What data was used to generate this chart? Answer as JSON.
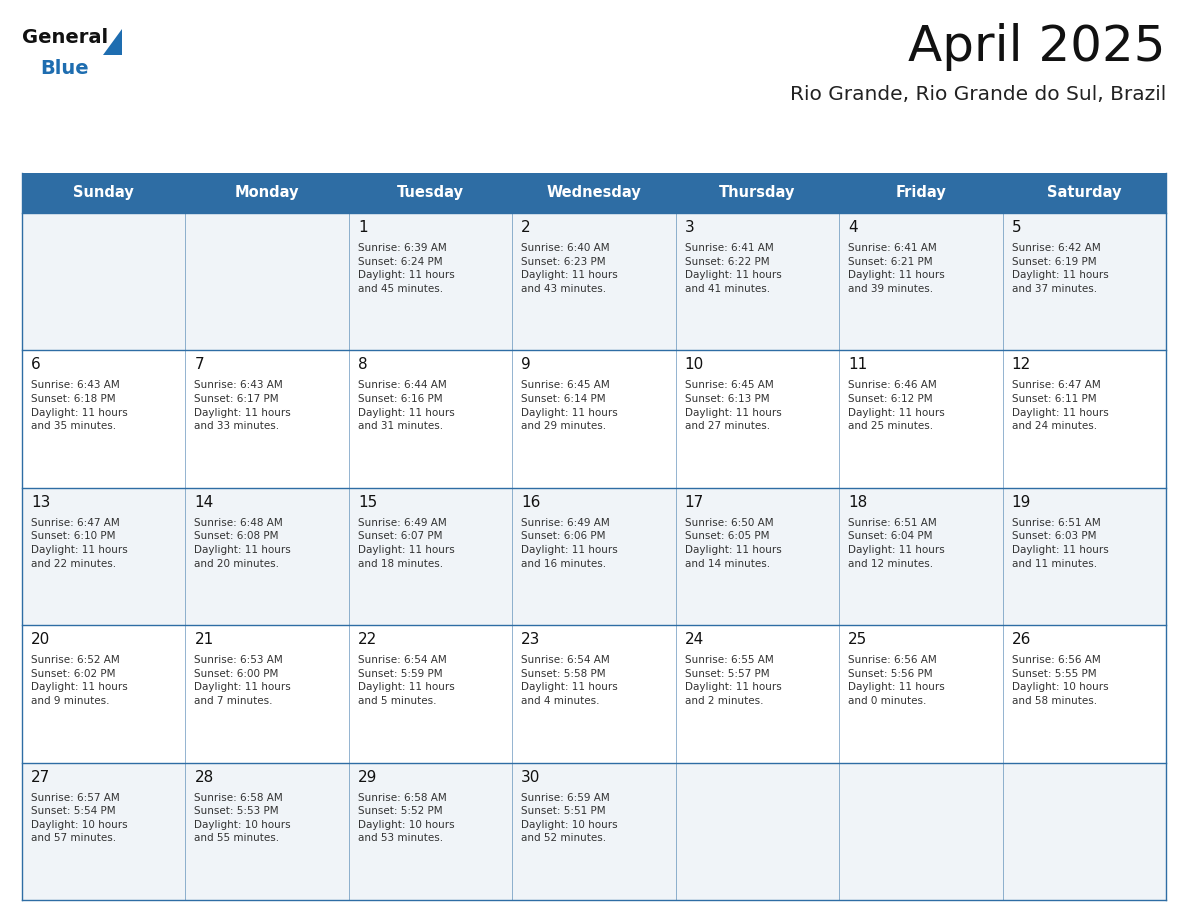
{
  "title": "April 2025",
  "subtitle": "Rio Grande, Rio Grande do Sul, Brazil",
  "days_of_week": [
    "Sunday",
    "Monday",
    "Tuesday",
    "Wednesday",
    "Thursday",
    "Friday",
    "Saturday"
  ],
  "header_bg": "#2E6DA4",
  "header_text": "#FFFFFF",
  "cell_bg_odd": "#F0F4F8",
  "cell_bg_even": "#FFFFFF",
  "cell_border": "#2E6DA4",
  "day_number_color": "#111111",
  "info_text_color": "#333333",
  "title_color": "#111111",
  "subtitle_color": "#222222",
  "logo_general_color": "#111111",
  "logo_blue_color": "#1E6DB0",
  "calendar_data": [
    [
      {
        "day": null,
        "info": ""
      },
      {
        "day": null,
        "info": ""
      },
      {
        "day": 1,
        "info": "Sunrise: 6:39 AM\nSunset: 6:24 PM\nDaylight: 11 hours\nand 45 minutes."
      },
      {
        "day": 2,
        "info": "Sunrise: 6:40 AM\nSunset: 6:23 PM\nDaylight: 11 hours\nand 43 minutes."
      },
      {
        "day": 3,
        "info": "Sunrise: 6:41 AM\nSunset: 6:22 PM\nDaylight: 11 hours\nand 41 minutes."
      },
      {
        "day": 4,
        "info": "Sunrise: 6:41 AM\nSunset: 6:21 PM\nDaylight: 11 hours\nand 39 minutes."
      },
      {
        "day": 5,
        "info": "Sunrise: 6:42 AM\nSunset: 6:19 PM\nDaylight: 11 hours\nand 37 minutes."
      }
    ],
    [
      {
        "day": 6,
        "info": "Sunrise: 6:43 AM\nSunset: 6:18 PM\nDaylight: 11 hours\nand 35 minutes."
      },
      {
        "day": 7,
        "info": "Sunrise: 6:43 AM\nSunset: 6:17 PM\nDaylight: 11 hours\nand 33 minutes."
      },
      {
        "day": 8,
        "info": "Sunrise: 6:44 AM\nSunset: 6:16 PM\nDaylight: 11 hours\nand 31 minutes."
      },
      {
        "day": 9,
        "info": "Sunrise: 6:45 AM\nSunset: 6:14 PM\nDaylight: 11 hours\nand 29 minutes."
      },
      {
        "day": 10,
        "info": "Sunrise: 6:45 AM\nSunset: 6:13 PM\nDaylight: 11 hours\nand 27 minutes."
      },
      {
        "day": 11,
        "info": "Sunrise: 6:46 AM\nSunset: 6:12 PM\nDaylight: 11 hours\nand 25 minutes."
      },
      {
        "day": 12,
        "info": "Sunrise: 6:47 AM\nSunset: 6:11 PM\nDaylight: 11 hours\nand 24 minutes."
      }
    ],
    [
      {
        "day": 13,
        "info": "Sunrise: 6:47 AM\nSunset: 6:10 PM\nDaylight: 11 hours\nand 22 minutes."
      },
      {
        "day": 14,
        "info": "Sunrise: 6:48 AM\nSunset: 6:08 PM\nDaylight: 11 hours\nand 20 minutes."
      },
      {
        "day": 15,
        "info": "Sunrise: 6:49 AM\nSunset: 6:07 PM\nDaylight: 11 hours\nand 18 minutes."
      },
      {
        "day": 16,
        "info": "Sunrise: 6:49 AM\nSunset: 6:06 PM\nDaylight: 11 hours\nand 16 minutes."
      },
      {
        "day": 17,
        "info": "Sunrise: 6:50 AM\nSunset: 6:05 PM\nDaylight: 11 hours\nand 14 minutes."
      },
      {
        "day": 18,
        "info": "Sunrise: 6:51 AM\nSunset: 6:04 PM\nDaylight: 11 hours\nand 12 minutes."
      },
      {
        "day": 19,
        "info": "Sunrise: 6:51 AM\nSunset: 6:03 PM\nDaylight: 11 hours\nand 11 minutes."
      }
    ],
    [
      {
        "day": 20,
        "info": "Sunrise: 6:52 AM\nSunset: 6:02 PM\nDaylight: 11 hours\nand 9 minutes."
      },
      {
        "day": 21,
        "info": "Sunrise: 6:53 AM\nSunset: 6:00 PM\nDaylight: 11 hours\nand 7 minutes."
      },
      {
        "day": 22,
        "info": "Sunrise: 6:54 AM\nSunset: 5:59 PM\nDaylight: 11 hours\nand 5 minutes."
      },
      {
        "day": 23,
        "info": "Sunrise: 6:54 AM\nSunset: 5:58 PM\nDaylight: 11 hours\nand 4 minutes."
      },
      {
        "day": 24,
        "info": "Sunrise: 6:55 AM\nSunset: 5:57 PM\nDaylight: 11 hours\nand 2 minutes."
      },
      {
        "day": 25,
        "info": "Sunrise: 6:56 AM\nSunset: 5:56 PM\nDaylight: 11 hours\nand 0 minutes."
      },
      {
        "day": 26,
        "info": "Sunrise: 6:56 AM\nSunset: 5:55 PM\nDaylight: 10 hours\nand 58 minutes."
      }
    ],
    [
      {
        "day": 27,
        "info": "Sunrise: 6:57 AM\nSunset: 5:54 PM\nDaylight: 10 hours\nand 57 minutes."
      },
      {
        "day": 28,
        "info": "Sunrise: 6:58 AM\nSunset: 5:53 PM\nDaylight: 10 hours\nand 55 minutes."
      },
      {
        "day": 29,
        "info": "Sunrise: 6:58 AM\nSunset: 5:52 PM\nDaylight: 10 hours\nand 53 minutes."
      },
      {
        "day": 30,
        "info": "Sunrise: 6:59 AM\nSunset: 5:51 PM\nDaylight: 10 hours\nand 52 minutes."
      },
      {
        "day": null,
        "info": ""
      },
      {
        "day": null,
        "info": ""
      },
      {
        "day": null,
        "info": ""
      }
    ]
  ]
}
